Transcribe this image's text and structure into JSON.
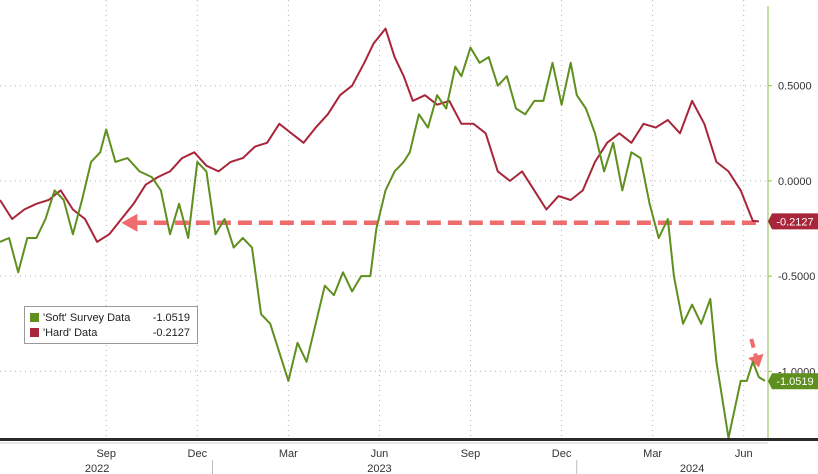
{
  "chart_data": {
    "type": "line",
    "y_axis": {
      "side": "right",
      "ticks": [
        "0.5000",
        "0.0000",
        "-0.5000",
        "-1.0000"
      ],
      "tick_values": [
        0.5,
        0,
        -0.5,
        -1.0
      ],
      "ylim": [
        -1.35,
        0.95
      ]
    },
    "x_axis": {
      "month_labels": [
        "Sep",
        "Dec",
        "Mar",
        "Jun",
        "Sep",
        "Dec",
        "Mar",
        "Jun"
      ],
      "month_positions": [
        3.5,
        6.5,
        9.5,
        12.5,
        15.5,
        18.5,
        21.5,
        24.5
      ],
      "year_labels": [
        "2022",
        "2023",
        "2024"
      ],
      "year_positions": [
        3.2,
        12.5,
        22.8
      ],
      "xlim": [
        0,
        25.3
      ]
    },
    "grid": true,
    "legend": {
      "placement": "lower-left",
      "entries": [
        {
          "name": "'Soft' Survey Data",
          "value": "-1.0519",
          "color": "#5f8f1e"
        },
        {
          "name": "'Hard' Data",
          "value": "-0.2127",
          "color": "#a8253a"
        }
      ]
    },
    "last_value_labels": [
      {
        "text": "-0.2127",
        "value": -0.2127,
        "color": "#a8253a"
      },
      {
        "text": "-1.0519",
        "value": -1.0519,
        "color": "#5f8f1e"
      }
    ],
    "annotations": [
      {
        "type": "dashed-arrow",
        "from": [
          24.9,
          -0.22
        ],
        "to": [
          4.0,
          -0.22
        ],
        "color": "#f06b6b"
      },
      {
        "type": "dashed-arrow",
        "from": [
          24.75,
          -0.83
        ],
        "to": [
          25.0,
          -0.98
        ],
        "color": "#f06b6b"
      }
    ],
    "series": [
      {
        "name": "'Soft' Survey Data",
        "color": "#5f8f1e",
        "points": [
          [
            0,
            -0.32
          ],
          [
            0.3,
            -0.3
          ],
          [
            0.6,
            -0.48
          ],
          [
            0.9,
            -0.3
          ],
          [
            1.2,
            -0.3
          ],
          [
            1.5,
            -0.2
          ],
          [
            1.8,
            -0.05
          ],
          [
            2.1,
            -0.1
          ],
          [
            2.4,
            -0.28
          ],
          [
            2.7,
            -0.1
          ],
          [
            3.0,
            0.1
          ],
          [
            3.3,
            0.15
          ],
          [
            3.5,
            0.27
          ],
          [
            3.8,
            0.1
          ],
          [
            4.2,
            0.12
          ],
          [
            4.6,
            0.05
          ],
          [
            5.0,
            0.02
          ],
          [
            5.3,
            -0.05
          ],
          [
            5.6,
            -0.28
          ],
          [
            5.9,
            -0.12
          ],
          [
            6.2,
            -0.3
          ],
          [
            6.5,
            0.1
          ],
          [
            6.8,
            0.05
          ],
          [
            7.1,
            -0.28
          ],
          [
            7.4,
            -0.2
          ],
          [
            7.7,
            -0.35
          ],
          [
            8.0,
            -0.3
          ],
          [
            8.3,
            -0.35
          ],
          [
            8.6,
            -0.7
          ],
          [
            8.9,
            -0.75
          ],
          [
            9.2,
            -0.9
          ],
          [
            9.5,
            -1.05
          ],
          [
            9.8,
            -0.85
          ],
          [
            10.1,
            -0.95
          ],
          [
            10.4,
            -0.75
          ],
          [
            10.7,
            -0.55
          ],
          [
            11.0,
            -0.6
          ],
          [
            11.3,
            -0.48
          ],
          [
            11.6,
            -0.58
          ],
          [
            11.9,
            -0.5
          ],
          [
            12.2,
            -0.5
          ],
          [
            12.4,
            -0.25
          ],
          [
            12.7,
            -0.05
          ],
          [
            13.0,
            0.05
          ],
          [
            13.3,
            0.1
          ],
          [
            13.5,
            0.15
          ],
          [
            13.8,
            0.35
          ],
          [
            14.1,
            0.28
          ],
          [
            14.4,
            0.45
          ],
          [
            14.7,
            0.38
          ],
          [
            15.0,
            0.6
          ],
          [
            15.2,
            0.55
          ],
          [
            15.5,
            0.7
          ],
          [
            15.8,
            0.62
          ],
          [
            16.1,
            0.65
          ],
          [
            16.4,
            0.5
          ],
          [
            16.7,
            0.55
          ],
          [
            17.0,
            0.38
          ],
          [
            17.3,
            0.35
          ],
          [
            17.6,
            0.42
          ],
          [
            17.9,
            0.42
          ],
          [
            18.2,
            0.62
          ],
          [
            18.5,
            0.4
          ],
          [
            18.8,
            0.62
          ],
          [
            19.0,
            0.45
          ],
          [
            19.3,
            0.38
          ],
          [
            19.6,
            0.25
          ],
          [
            19.9,
            0.05
          ],
          [
            20.2,
            0.2
          ],
          [
            20.5,
            -0.05
          ],
          [
            20.8,
            0.15
          ],
          [
            21.1,
            0.12
          ],
          [
            21.4,
            -0.12
          ],
          [
            21.7,
            -0.3
          ],
          [
            22.0,
            -0.2
          ],
          [
            22.2,
            -0.5
          ],
          [
            22.5,
            -0.75
          ],
          [
            22.8,
            -0.65
          ],
          [
            23.1,
            -0.75
          ],
          [
            23.4,
            -0.62
          ],
          [
            23.6,
            -0.95
          ],
          [
            23.8,
            -1.15
          ],
          [
            24.0,
            -1.35
          ],
          [
            24.2,
            -1.2
          ],
          [
            24.4,
            -1.05
          ],
          [
            24.6,
            -1.05
          ],
          [
            24.8,
            -0.95
          ],
          [
            25.0,
            -1.03
          ],
          [
            25.2,
            -1.05
          ]
        ]
      },
      {
        "name": "'Hard' Data",
        "color": "#a8253a",
        "points": [
          [
            0,
            -0.1
          ],
          [
            0.4,
            -0.2
          ],
          [
            0.8,
            -0.15
          ],
          [
            1.2,
            -0.12
          ],
          [
            1.6,
            -0.1
          ],
          [
            2.0,
            -0.05
          ],
          [
            2.4,
            -0.15
          ],
          [
            2.8,
            -0.2
          ],
          [
            3.2,
            -0.32
          ],
          [
            3.6,
            -0.28
          ],
          [
            4.0,
            -0.2
          ],
          [
            4.4,
            -0.12
          ],
          [
            4.8,
            -0.02
          ],
          [
            5.2,
            0.02
          ],
          [
            5.6,
            0.05
          ],
          [
            6.0,
            0.12
          ],
          [
            6.4,
            0.15
          ],
          [
            6.8,
            0.08
          ],
          [
            7.2,
            0.05
          ],
          [
            7.6,
            0.1
          ],
          [
            8.0,
            0.12
          ],
          [
            8.4,
            0.18
          ],
          [
            8.8,
            0.2
          ],
          [
            9.2,
            0.3
          ],
          [
            9.6,
            0.25
          ],
          [
            10.0,
            0.2
          ],
          [
            10.4,
            0.28
          ],
          [
            10.8,
            0.35
          ],
          [
            11.2,
            0.45
          ],
          [
            11.6,
            0.5
          ],
          [
            12.0,
            0.62
          ],
          [
            12.3,
            0.72
          ],
          [
            12.7,
            0.8
          ],
          [
            13.0,
            0.65
          ],
          [
            13.3,
            0.55
          ],
          [
            13.6,
            0.42
          ],
          [
            14.0,
            0.45
          ],
          [
            14.4,
            0.4
          ],
          [
            14.8,
            0.42
          ],
          [
            15.2,
            0.3
          ],
          [
            15.6,
            0.3
          ],
          [
            16.0,
            0.25
          ],
          [
            16.4,
            0.05
          ],
          [
            16.8,
            0.0
          ],
          [
            17.2,
            0.05
          ],
          [
            17.6,
            -0.05
          ],
          [
            18.0,
            -0.15
          ],
          [
            18.4,
            -0.08
          ],
          [
            18.8,
            -0.1
          ],
          [
            19.2,
            -0.05
          ],
          [
            19.6,
            0.1
          ],
          [
            20.0,
            0.2
          ],
          [
            20.4,
            0.25
          ],
          [
            20.8,
            0.2
          ],
          [
            21.2,
            0.3
          ],
          [
            21.6,
            0.28
          ],
          [
            22.0,
            0.32
          ],
          [
            22.4,
            0.25
          ],
          [
            22.8,
            0.42
          ],
          [
            23.2,
            0.3
          ],
          [
            23.6,
            0.1
          ],
          [
            24.0,
            0.05
          ],
          [
            24.4,
            -0.05
          ],
          [
            24.8,
            -0.21
          ],
          [
            25.0,
            -0.2127
          ]
        ]
      }
    ]
  }
}
